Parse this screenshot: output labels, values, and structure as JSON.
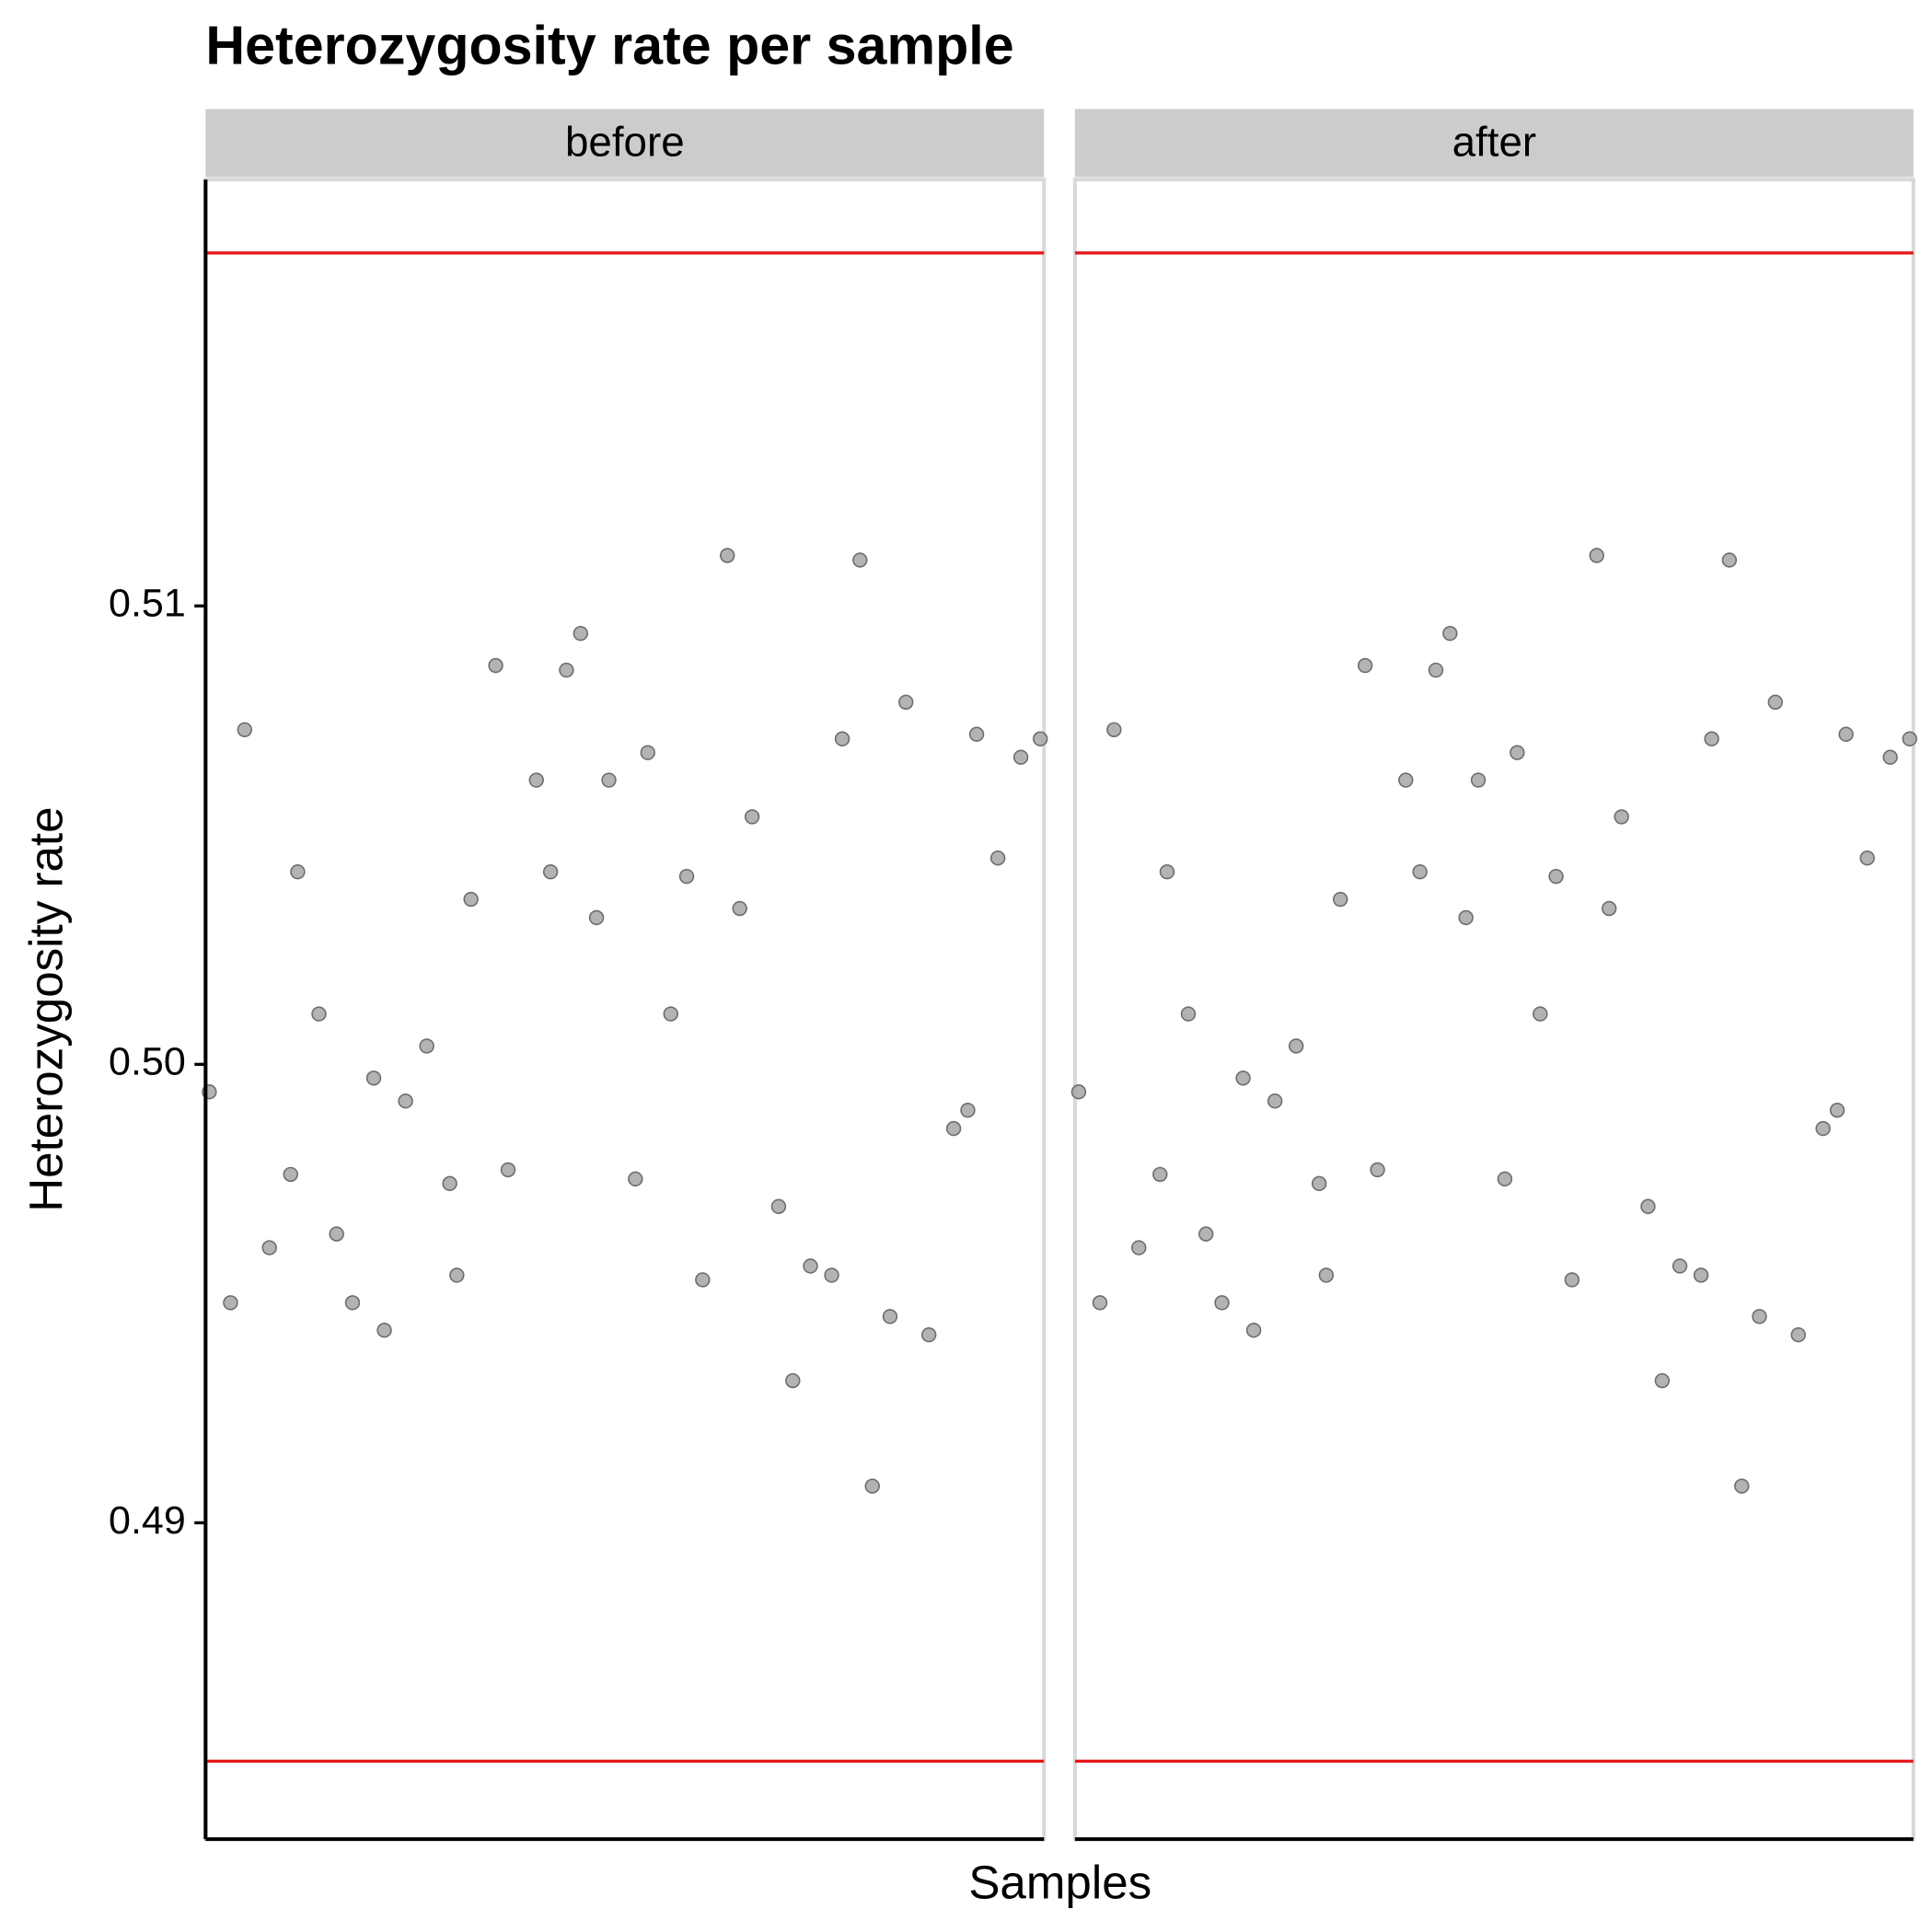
{
  "chart_data": {
    "type": "scatter",
    "title": "Heterozygosity rate per sample",
    "x_label": "Samples",
    "y_label": "Heterozygosity rate",
    "ylim": [
      0.4831,
      0.5193
    ],
    "yticks": [
      0.49,
      {
        "value": 0.5,
        "label": "0.50"
      },
      0.51
    ],
    "xlim": [
      0.79,
      48.21
    ],
    "point_color": "#a6a6a6",
    "hlines": [
      0.5177,
      0.4848
    ],
    "hline_color": "#e41a1c",
    "facets": [
      {
        "name": "before",
        "x": [
          1.0,
          2.2,
          3.0,
          4.4,
          5.6,
          6.0,
          7.2,
          8.2,
          9.1,
          10.3,
          10.9,
          12.1,
          13.3,
          14.6,
          15.0,
          15.8,
          17.2,
          17.9,
          19.5,
          20.3,
          21.2,
          22.0,
          22.9,
          23.6,
          25.1,
          25.8,
          27.1,
          28.0,
          28.9,
          30.3,
          31.0,
          31.7,
          33.2,
          34.0,
          35.0,
          36.2,
          36.8,
          37.8,
          38.5,
          39.5,
          40.4,
          41.7,
          43.1,
          43.9,
          44.4,
          45.6,
          46.9,
          48.0
        ],
        "values": [
          0.4994,
          0.4948,
          0.5073,
          0.496,
          0.4976,
          0.5042,
          0.5011,
          0.4963,
          0.4948,
          0.4997,
          0.4942,
          0.4992,
          0.5004,
          0.4974,
          0.4954,
          0.5036,
          0.5087,
          0.4977,
          0.5062,
          0.5042,
          0.5086,
          0.5094,
          0.5032,
          0.5062,
          0.4975,
          0.5068,
          0.5011,
          0.5041,
          0.4953,
          0.5111,
          0.5034,
          0.5054,
          0.4969,
          0.4931,
          0.4956,
          0.4954,
          0.5071,
          0.511,
          0.4908,
          0.4945,
          0.5079,
          0.4941,
          0.4986,
          0.499,
          0.5072,
          0.5045,
          0.5067,
          0.5071
        ]
      },
      {
        "name": "after",
        "x": [
          1.0,
          2.2,
          3.0,
          4.4,
          5.6,
          6.0,
          7.2,
          8.2,
          9.1,
          10.3,
          10.9,
          12.1,
          13.3,
          14.6,
          15.0,
          15.8,
          17.2,
          17.9,
          19.5,
          20.3,
          21.2,
          22.0,
          22.9,
          23.6,
          25.1,
          25.8,
          27.1,
          28.0,
          28.9,
          30.3,
          31.0,
          31.7,
          33.2,
          34.0,
          35.0,
          36.2,
          36.8,
          37.8,
          38.5,
          39.5,
          40.4,
          41.7,
          43.1,
          43.9,
          44.4,
          45.6,
          46.9,
          48.0
        ],
        "values": [
          0.4994,
          0.4948,
          0.5073,
          0.496,
          0.4976,
          0.5042,
          0.5011,
          0.4963,
          0.4948,
          0.4997,
          0.4942,
          0.4992,
          0.5004,
          0.4974,
          0.4954,
          0.5036,
          0.5087,
          0.4977,
          0.5062,
          0.5042,
          0.5086,
          0.5094,
          0.5032,
          0.5062,
          0.4975,
          0.5068,
          0.5011,
          0.5041,
          0.4953,
          0.5111,
          0.5034,
          0.5054,
          0.4969,
          0.4931,
          0.4956,
          0.4954,
          0.5071,
          0.511,
          0.4908,
          0.4945,
          0.5079,
          0.4941,
          0.4986,
          0.499,
          0.5072,
          0.5045,
          0.5067,
          0.5071
        ]
      }
    ]
  }
}
